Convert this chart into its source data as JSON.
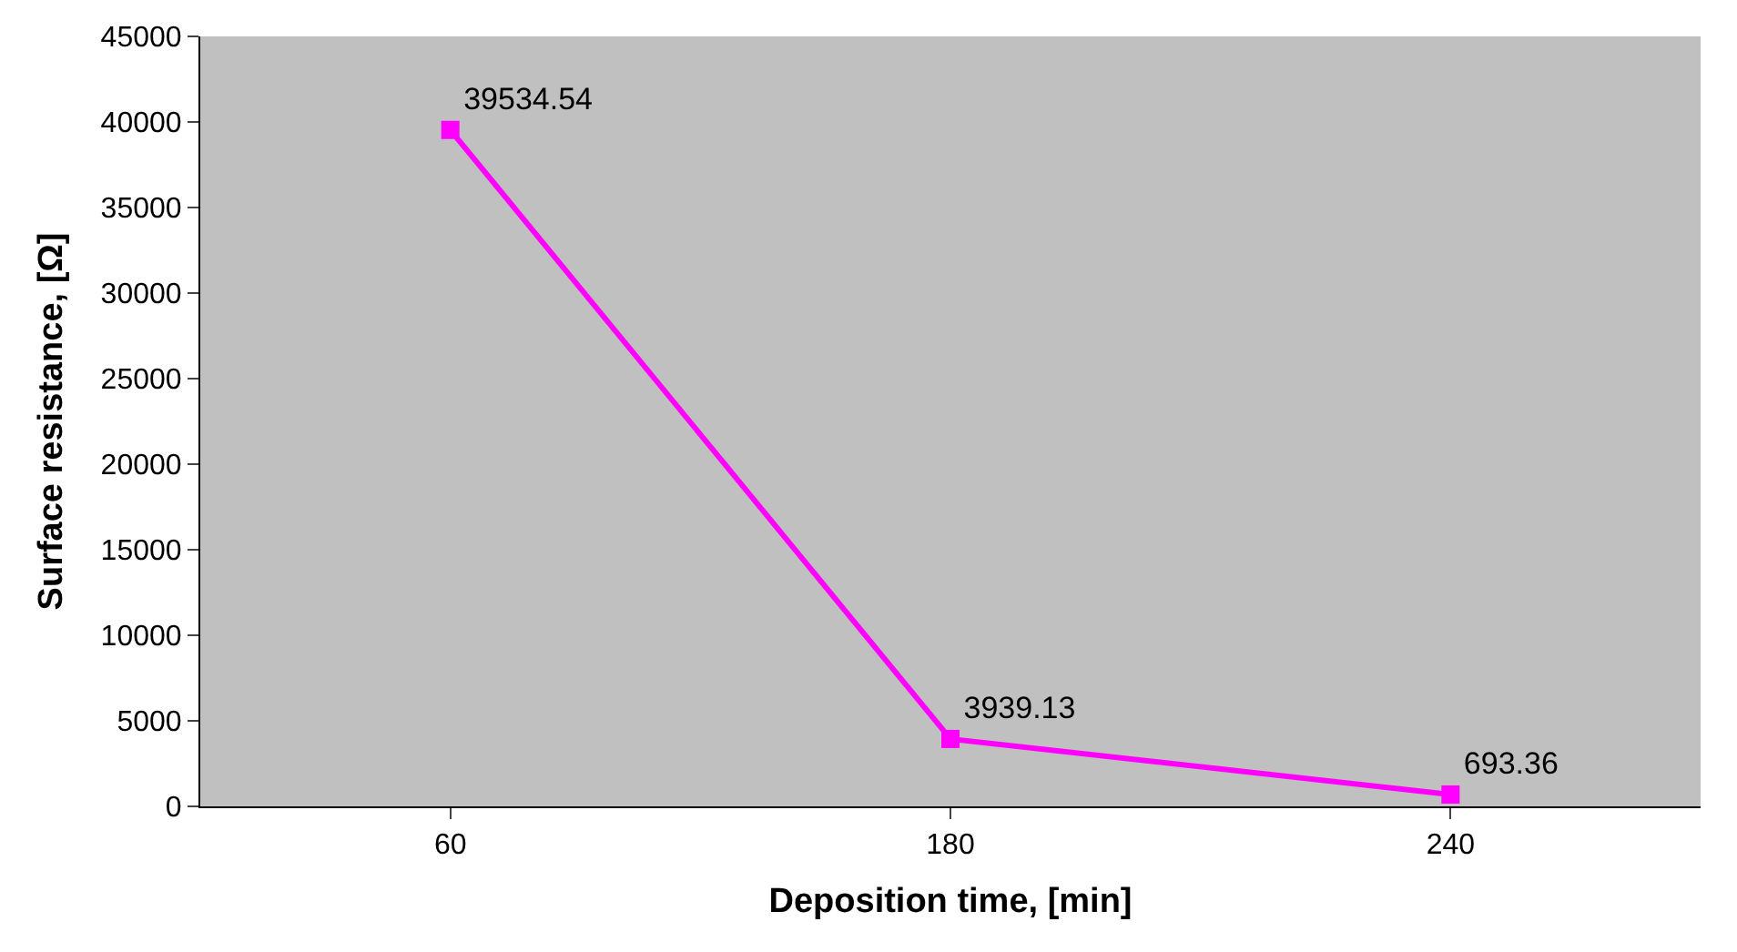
{
  "chart_data": {
    "type": "line",
    "xlabel": "Deposition time, [min]",
    "ylabel": "Surface resistance, [Ω]",
    "categories": [
      "60",
      "180",
      "240"
    ],
    "series": [
      {
        "color": "#ff00ff",
        "values": [
          39534.54,
          3939.13,
          693.36
        ]
      }
    ],
    "ylim": [
      0,
      45000
    ],
    "yticks": [
      0,
      5000,
      10000,
      15000,
      20000,
      25000,
      30000,
      35000,
      40000,
      45000
    ],
    "data_labels": true,
    "marker": "square",
    "line_style": "solid",
    "grid": false,
    "legend": false
  }
}
